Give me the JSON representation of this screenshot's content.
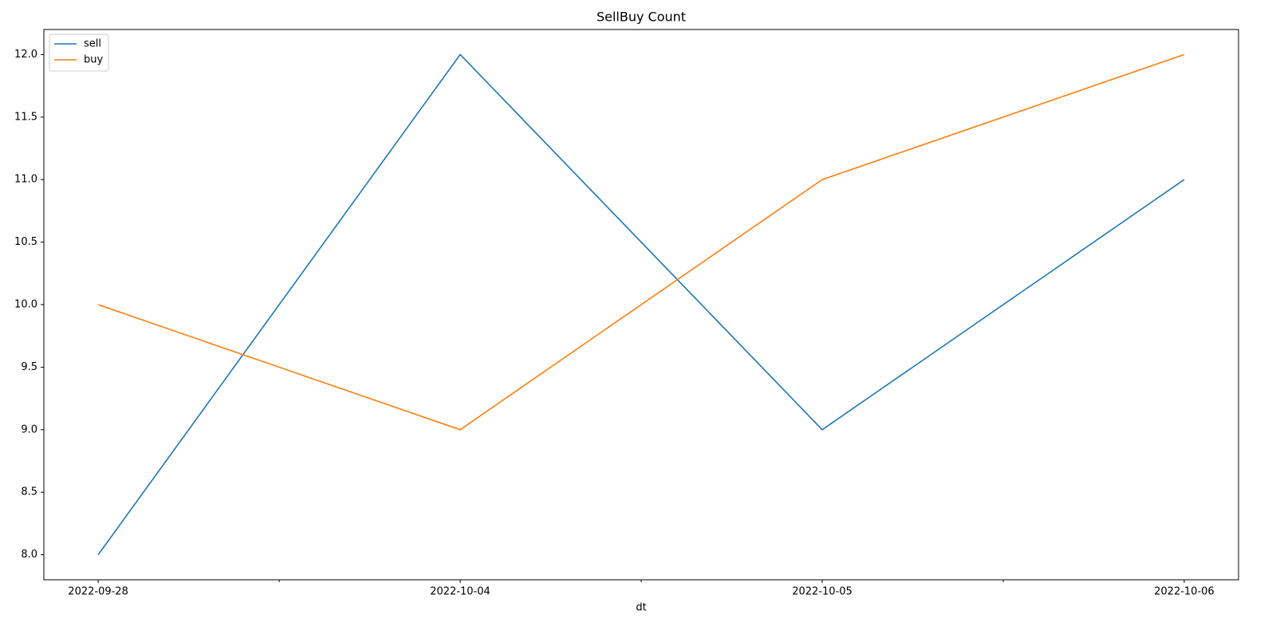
{
  "chart_data": {
    "type": "line",
    "title": "SellBuy Count",
    "xlabel": "dt",
    "categories": [
      "2022-09-28",
      "2022-10-04",
      "2022-10-05",
      "2022-10-06"
    ],
    "series": [
      {
        "name": "sell",
        "color": "#1f77b4",
        "values": [
          8,
          12,
          9,
          11
        ]
      },
      {
        "name": "buy",
        "color": "#ff7f0e",
        "values": [
          10,
          9,
          11,
          12
        ]
      }
    ],
    "ylim": [
      7.8,
      12.2
    ],
    "yticks": [
      {
        "value": 8,
        "label": "8.0"
      },
      {
        "value": 8.5,
        "label": "8.5"
      },
      {
        "value": 9,
        "label": "9.0"
      },
      {
        "value": 9.5,
        "label": "9.5"
      },
      {
        "value": 10,
        "label": "10.0"
      },
      {
        "value": 10.5,
        "label": "10.5"
      },
      {
        "value": 11,
        "label": "11.0"
      },
      {
        "value": 11.5,
        "label": "11.5"
      },
      {
        "value": 12,
        "label": "12.0"
      }
    ],
    "legend": "upper left"
  }
}
